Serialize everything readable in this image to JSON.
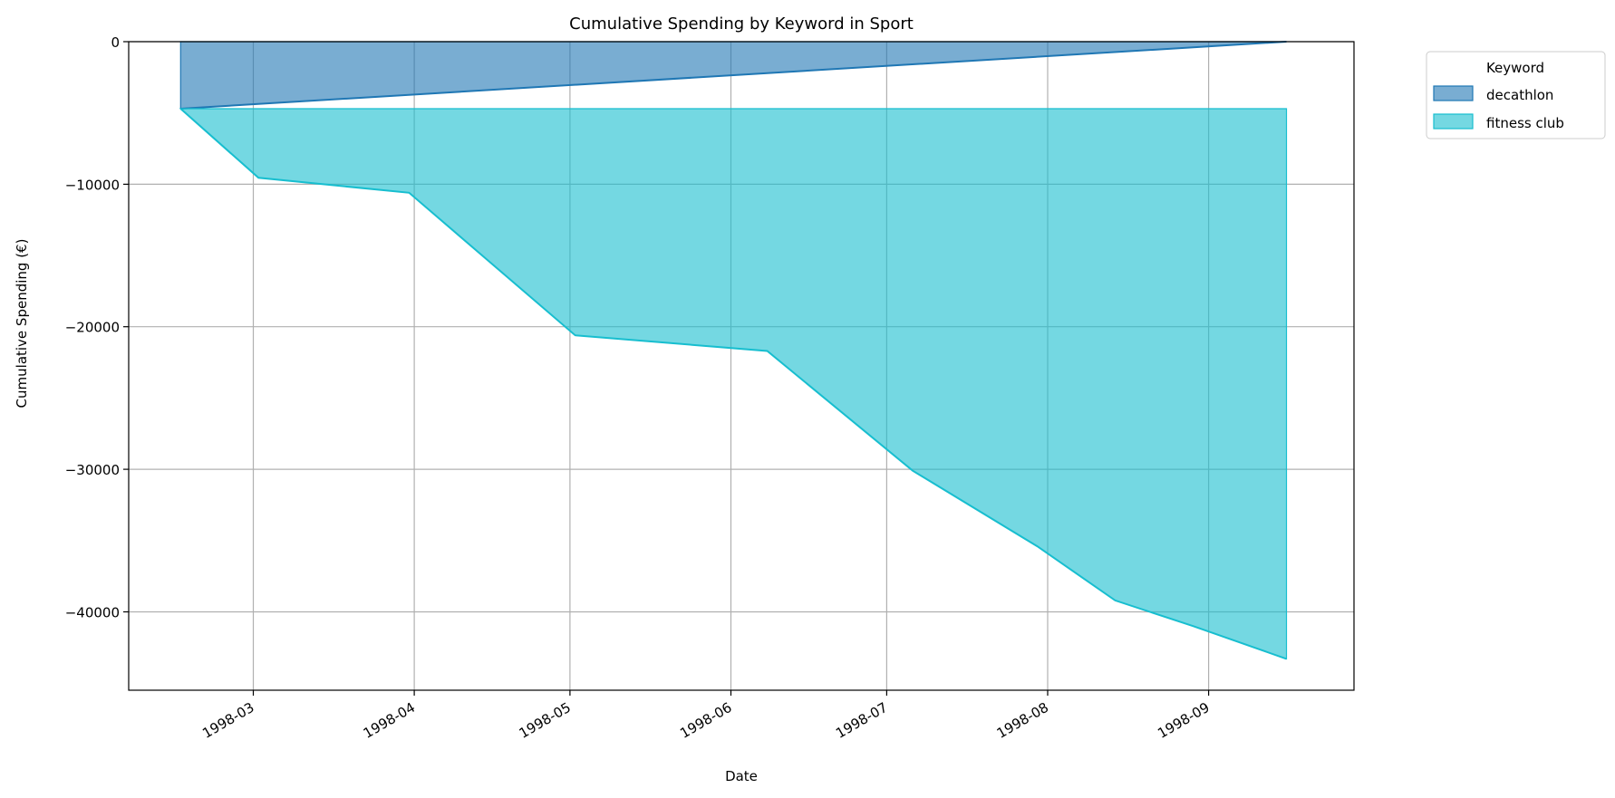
{
  "chart_data": {
    "type": "area",
    "stacked": true,
    "title": "Cumulative Spending by Keyword in Sport",
    "xlabel": "Date",
    "ylabel": "Cumulative Spending (€)",
    "ylim": [
      -45500,
      0
    ],
    "yticks": [
      0,
      -10000,
      -20000,
      -30000,
      -40000
    ],
    "ytick_labels": [
      "0",
      "−10000",
      "−20000",
      "−30000",
      "−40000"
    ],
    "xlim": [
      "1998-02-05",
      "1998-09-29"
    ],
    "xticks": [
      "1998-03-01",
      "1998-04-01",
      "1998-05-01",
      "1998-06-01",
      "1998-07-01",
      "1998-08-01",
      "1998-09-01"
    ],
    "xtick_labels": [
      "1998-03",
      "1998-04",
      "1998-05",
      "1998-06",
      "1998-07",
      "1998-08",
      "1998-09"
    ],
    "grid": true,
    "legend": {
      "title": "Keyword",
      "position": "outside-top-right"
    },
    "series": [
      {
        "name": "decathlon",
        "color": "#1f77b4",
        "x": [
          "1998-02-15",
          "1998-09-16"
        ],
        "values": [
          -4700,
          0
        ]
      },
      {
        "name": "fitness club",
        "color": "#17becf",
        "x": [
          "1998-02-15",
          "1998-03-02",
          "1998-03-31",
          "1998-05-02",
          "1998-06-08",
          "1998-07-06",
          "1998-07-30",
          "1998-08-14",
          "1998-08-29",
          "1998-09-16"
        ],
        "values": [
          0,
          -4850,
          -5900,
          -15900,
          -17000,
          -25400,
          -30700,
          -34500,
          -36300,
          -38600
        ]
      }
    ]
  }
}
